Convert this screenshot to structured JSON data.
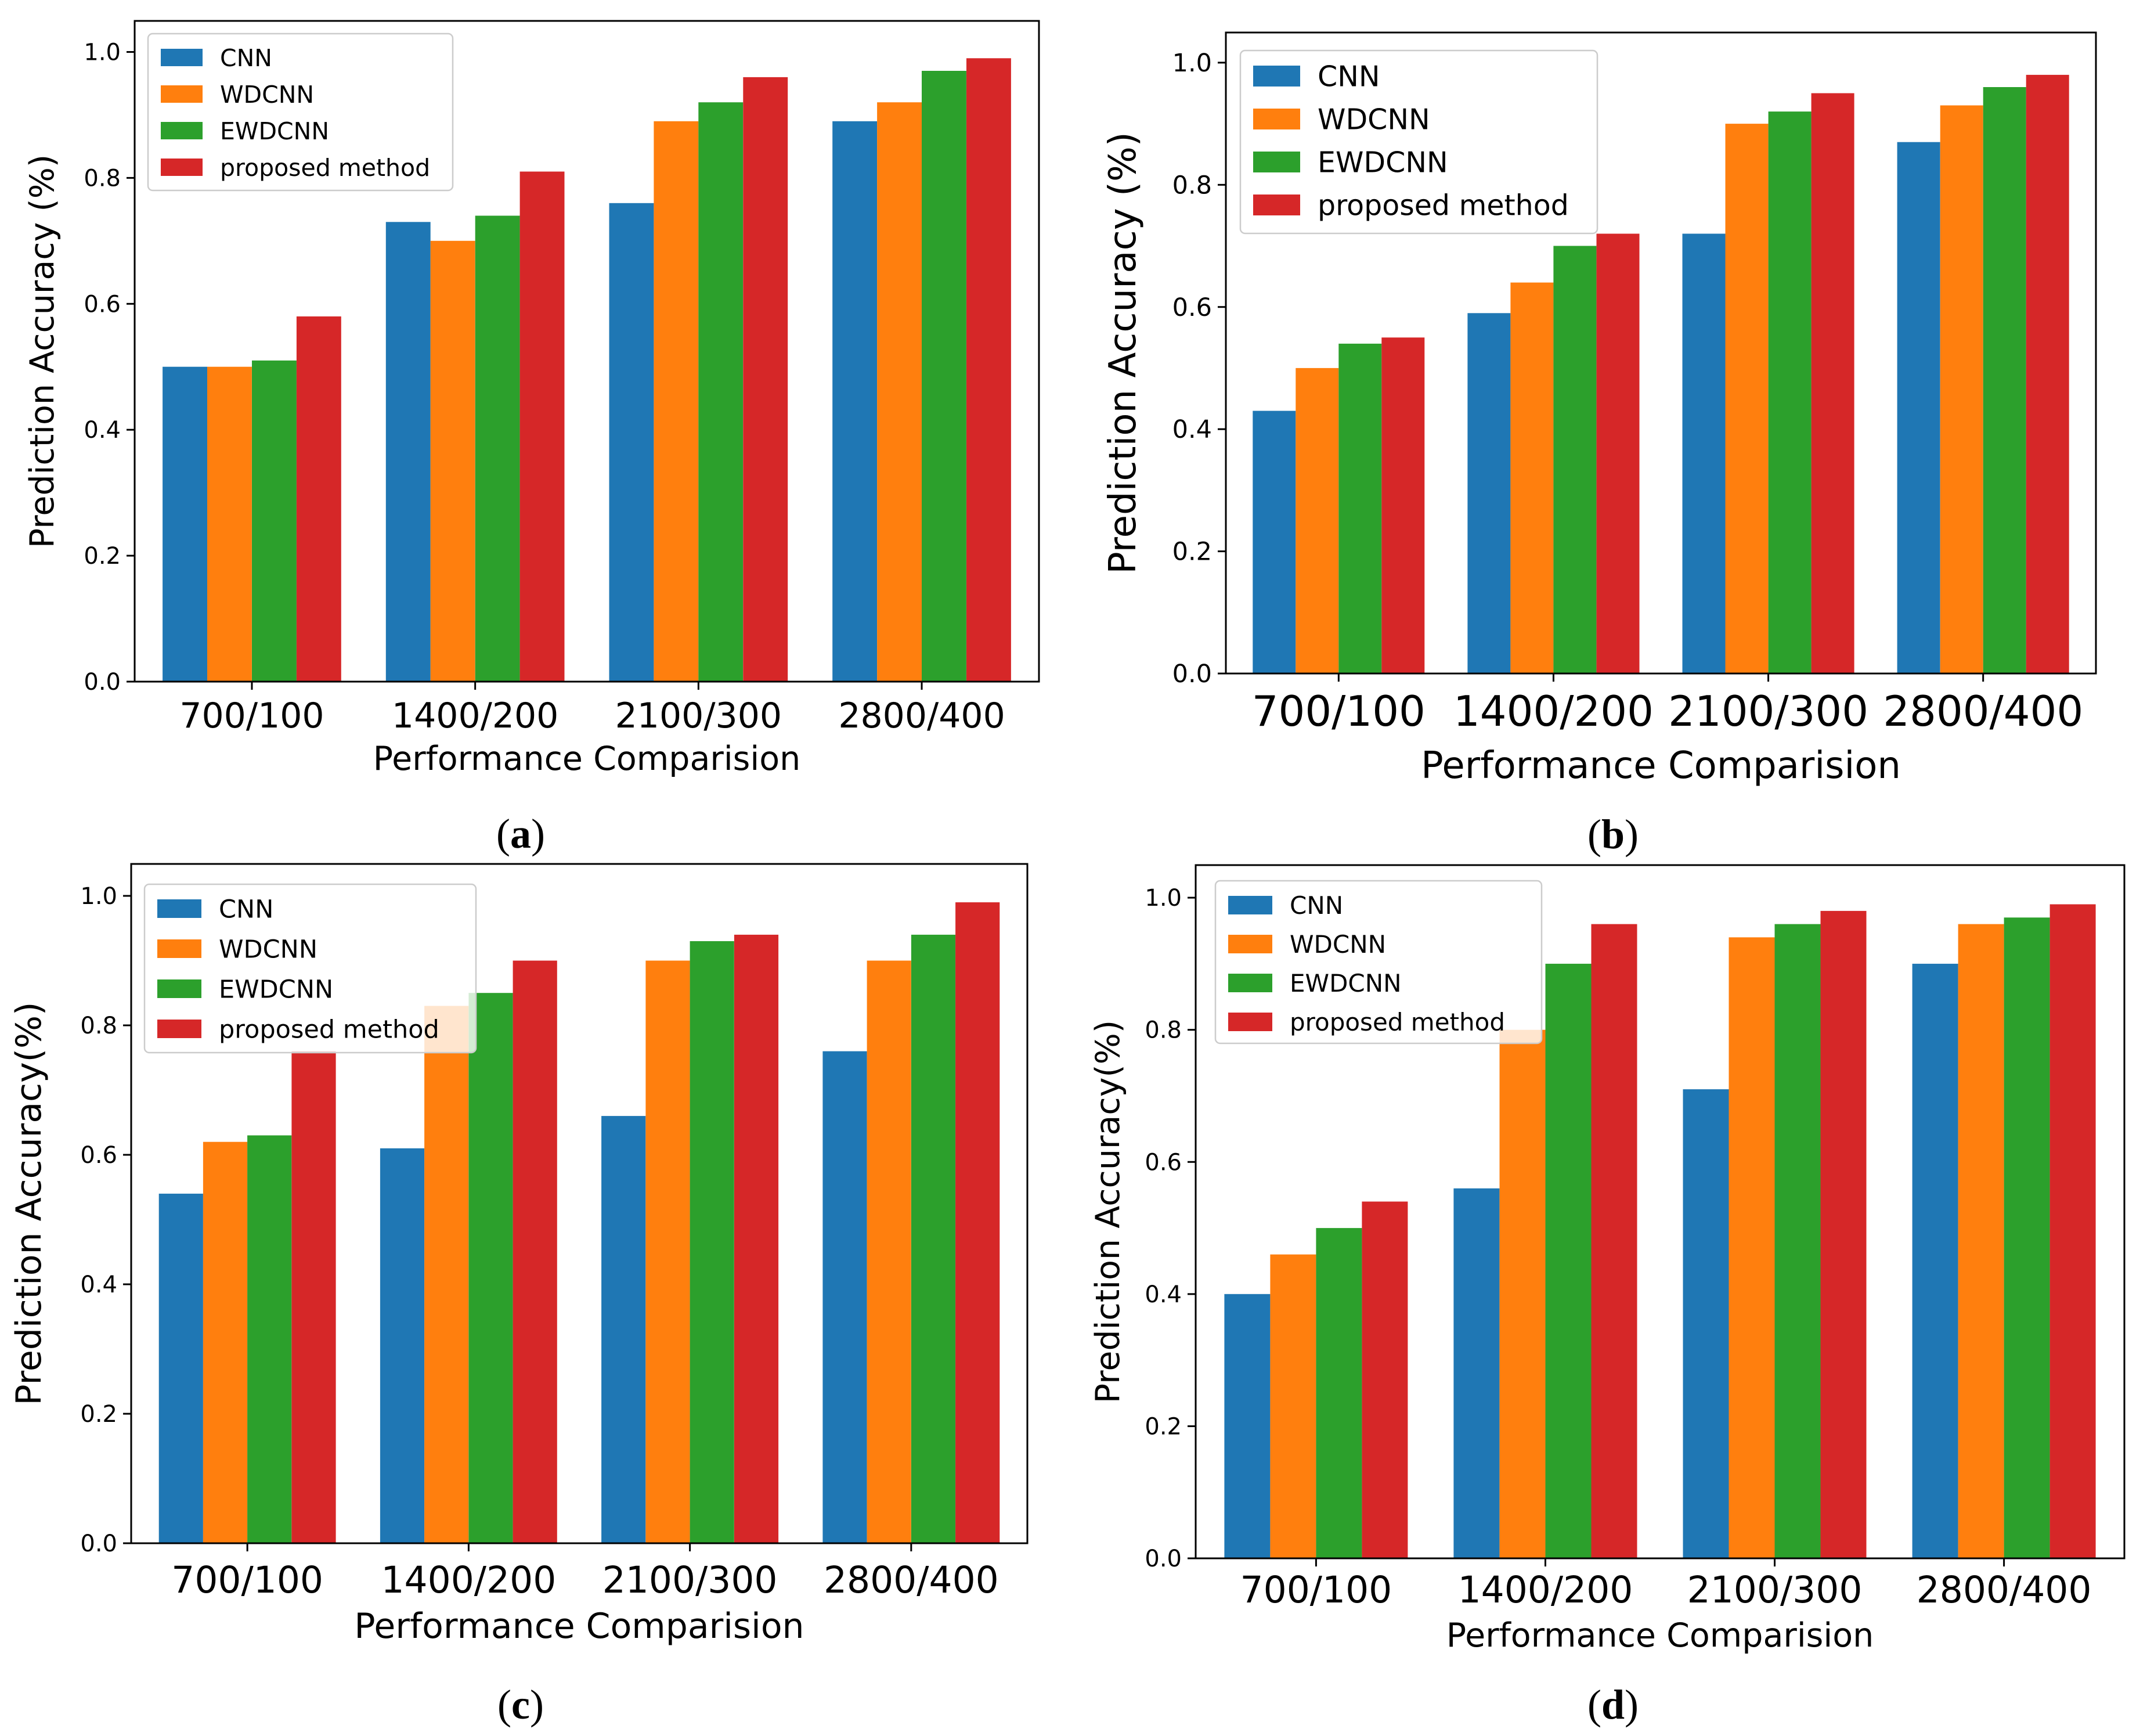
{
  "colors": {
    "CNN": "#1f77b4",
    "WDCNN": "#ff7f0e",
    "EWDCNN": "#2ca02c",
    "proposed method": "#d62728"
  },
  "chart_data": [
    {
      "panel": "a",
      "caption": "(a)",
      "type": "bar",
      "categories": [
        "700/100",
        "1400/200",
        "2100/300",
        "2800/400"
      ],
      "series": [
        {
          "name": "CNN",
          "values": [
            0.5,
            0.73,
            0.76,
            0.89
          ]
        },
        {
          "name": "WDCNN",
          "values": [
            0.5,
            0.7,
            0.89,
            0.92
          ]
        },
        {
          "name": "EWDCNN",
          "values": [
            0.51,
            0.74,
            0.92,
            0.97
          ]
        },
        {
          "name": "proposed method",
          "values": [
            0.58,
            0.81,
            0.96,
            0.99
          ]
        }
      ],
      "xlabel": "Performance Comparision",
      "ylabel": "Prediction Accuracy (%)",
      "yticks": [
        "0.0",
        "0.2",
        "0.4",
        "0.6",
        "0.8",
        "1.0"
      ],
      "ylim": [
        0,
        1.0
      ],
      "legend": "top-left"
    },
    {
      "panel": "b",
      "caption": "(b)",
      "type": "bar",
      "categories": [
        "700/100",
        "1400/200",
        "2100/300",
        "2800/400"
      ],
      "series": [
        {
          "name": "CNN",
          "values": [
            0.43,
            0.59,
            0.72,
            0.87
          ]
        },
        {
          "name": "WDCNN",
          "values": [
            0.5,
            0.64,
            0.9,
            0.93
          ]
        },
        {
          "name": "EWDCNN",
          "values": [
            0.54,
            0.7,
            0.92,
            0.96
          ]
        },
        {
          "name": "proposed method",
          "values": [
            0.55,
            0.72,
            0.95,
            0.98
          ]
        }
      ],
      "xlabel": "Performance Comparision",
      "ylabel": "Prediction Accuracy (%)",
      "yticks": [
        "0.0",
        "0.2",
        "0.4",
        "0.6",
        "0.8",
        "1.0"
      ],
      "ylim": [
        0,
        1.0
      ],
      "legend": "top-left"
    },
    {
      "panel": "c",
      "caption": "(c)",
      "type": "bar",
      "categories": [
        "700/100",
        "1400/200",
        "2100/300",
        "2800/400"
      ],
      "series": [
        {
          "name": "CNN",
          "values": [
            0.54,
            0.61,
            0.66,
            0.76
          ]
        },
        {
          "name": "WDCNN",
          "values": [
            0.62,
            0.83,
            0.9,
            0.9
          ]
        },
        {
          "name": "EWDCNN",
          "values": [
            0.63,
            0.85,
            0.93,
            0.94
          ]
        },
        {
          "name": "proposed method",
          "values": [
            0.76,
            0.9,
            0.94,
            0.99
          ]
        }
      ],
      "xlabel": "Performance Comparision",
      "ylabel": "Prediction Accuracy(%)",
      "yticks": [
        "0.0",
        "0.2",
        "0.4",
        "0.6",
        "0.8",
        "1.0"
      ],
      "ylim": [
        0,
        1.0
      ],
      "legend": "top-left"
    },
    {
      "panel": "d",
      "caption": "(d)",
      "type": "bar",
      "categories": [
        "700/100",
        "1400/200",
        "2100/300",
        "2800/400"
      ],
      "series": [
        {
          "name": "CNN",
          "values": [
            0.4,
            0.56,
            0.71,
            0.9
          ]
        },
        {
          "name": "WDCNN",
          "values": [
            0.46,
            0.8,
            0.94,
            0.96
          ]
        },
        {
          "name": "EWDCNN",
          "values": [
            0.5,
            0.9,
            0.96,
            0.97
          ]
        },
        {
          "name": "proposed method",
          "values": [
            0.54,
            0.96,
            0.98,
            0.99
          ]
        }
      ],
      "xlabel": "Performance Comparision",
      "ylabel": "Prediction Accuracy(%)",
      "yticks": [
        "0.0",
        "0.2",
        "0.4",
        "0.6",
        "0.8",
        "1.0"
      ],
      "ylim": [
        0,
        1.0
      ],
      "legend": "top-left"
    }
  ]
}
